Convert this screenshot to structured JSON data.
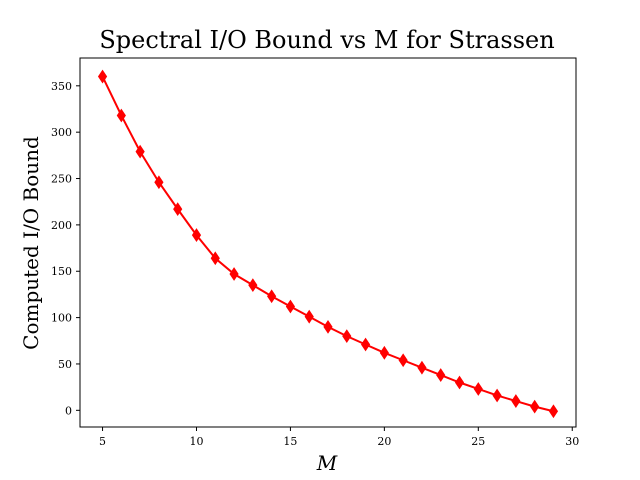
{
  "chart_data": {
    "type": "line",
    "title": "Spectral I/O Bound vs M for Strassen",
    "xlabel": "M",
    "ylabel": "Computed I/O Bound",
    "xlim": [
      3.8,
      30.2
    ],
    "ylim": [
      -18,
      380
    ],
    "xticks": [
      5,
      10,
      15,
      20,
      25,
      30
    ],
    "yticks": [
      0,
      50,
      100,
      150,
      200,
      250,
      300,
      350
    ],
    "grid": false,
    "series": [
      {
        "color": "#ff0000",
        "marker": "diamond",
        "x": [
          5,
          6,
          7,
          8,
          9,
          10,
          11,
          12,
          13,
          14,
          15,
          16,
          17,
          18,
          19,
          20,
          21,
          22,
          23,
          24,
          25,
          26,
          27,
          28,
          29
        ],
        "y": [
          360,
          318,
          279,
          246,
          217,
          189,
          164,
          147,
          135,
          123,
          112,
          101,
          90,
          80,
          71,
          62,
          54,
          46,
          38,
          30,
          23,
          16,
          10,
          4,
          -1
        ]
      }
    ]
  }
}
